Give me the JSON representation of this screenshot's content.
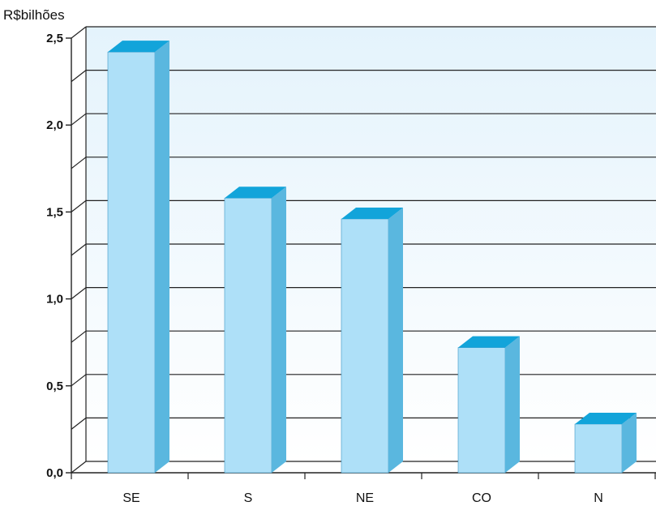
{
  "chart_data": {
    "type": "bar",
    "categories": [
      "SE",
      "S",
      "NE",
      "CO",
      "N"
    ],
    "values": [
      2.42,
      1.58,
      1.46,
      0.72,
      0.28
    ],
    "title": "",
    "xlabel": "",
    "ylabel": "R$bilhões",
    "ylim": [
      0,
      2.5
    ],
    "yticks": [
      "0,0",
      "0,5",
      "1,0",
      "1,5",
      "2,0",
      "2,5"
    ],
    "grid": true,
    "colors": {
      "bar_front": "#aee0f8",
      "bar_side": "#5ab7df",
      "bar_top": "#12a4da",
      "plot_bg_top": "#e4f3fc",
      "plot_bg_bottom": "#ffffff",
      "grid": "#222222"
    }
  }
}
